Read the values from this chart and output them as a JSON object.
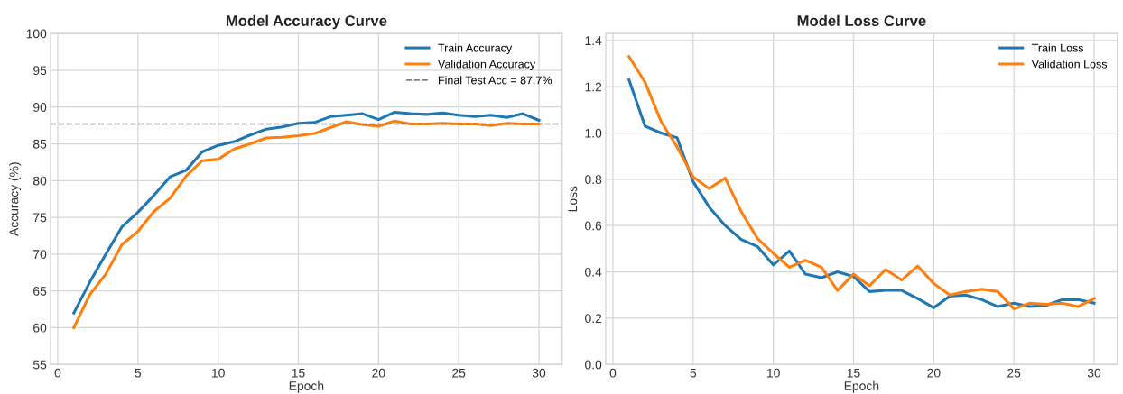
{
  "chart_data": [
    {
      "type": "line",
      "title": "Model Accuracy Curve",
      "xlabel": "Epoch",
      "ylabel": "Accuracy (%)",
      "x": [
        1,
        2,
        3,
        4,
        5,
        6,
        7,
        8,
        9,
        10,
        11,
        12,
        13,
        14,
        15,
        16,
        17,
        18,
        19,
        20,
        21,
        22,
        23,
        24,
        25,
        26,
        27,
        28,
        29,
        30
      ],
      "series": [
        {
          "name": "Train Accuracy",
          "color": "#1f77b4",
          "values": [
            62.0,
            66.2,
            70.0,
            73.7,
            75.7,
            78.0,
            80.5,
            81.4,
            83.9,
            84.8,
            85.3,
            86.2,
            87.0,
            87.3,
            87.8,
            87.9,
            88.7,
            88.9,
            89.1,
            88.3,
            89.3,
            89.1,
            89.0,
            89.2,
            88.9,
            88.7,
            88.9,
            88.6,
            89.1,
            88.2
          ]
        },
        {
          "name": "Validation Accuracy",
          "color": "#ff7f0e",
          "values": [
            60.0,
            64.5,
            67.3,
            71.3,
            73.1,
            75.8,
            77.6,
            80.6,
            82.7,
            82.9,
            84.3,
            85.0,
            85.8,
            85.9,
            86.1,
            86.4,
            87.2,
            88.0,
            87.6,
            87.4,
            88.1,
            87.7,
            87.7,
            87.8,
            87.7,
            87.7,
            87.5,
            87.8,
            87.7,
            87.7
          ]
        }
      ],
      "ref_lines": [
        {
          "axis": "y",
          "value": 87.7,
          "label": "Final Test Acc = 87.7%",
          "color": "#808080",
          "line_style": "dashed"
        }
      ],
      "xlim": [
        -0.45,
        31.45
      ],
      "xticks": [
        0,
        5,
        10,
        15,
        20,
        25,
        30
      ],
      "ylim": [
        55,
        100
      ],
      "yticks": [
        55,
        60,
        65,
        70,
        75,
        80,
        85,
        90,
        95,
        100
      ],
      "grid": true,
      "legend": "top right",
      "line_style": "solid",
      "marker": "none"
    },
    {
      "type": "line",
      "title": "Model Loss Curve",
      "xlabel": "Epoch",
      "ylabel": "Loss",
      "x": [
        1,
        2,
        3,
        4,
        5,
        6,
        7,
        8,
        9,
        10,
        11,
        12,
        13,
        14,
        15,
        16,
        17,
        18,
        19,
        20,
        21,
        22,
        23,
        24,
        25,
        26,
        27,
        28,
        29,
        30
      ],
      "series": [
        {
          "name": "Train Loss",
          "color": "#1f77b4",
          "values": [
            1.23,
            1.03,
            1.0,
            0.98,
            0.79,
            0.68,
            0.6,
            0.54,
            0.51,
            0.43,
            0.49,
            0.39,
            0.375,
            0.4,
            0.38,
            0.315,
            0.32,
            0.32,
            0.285,
            0.245,
            0.295,
            0.3,
            0.28,
            0.25,
            0.265,
            0.25,
            0.255,
            0.28,
            0.28,
            0.265
          ]
        },
        {
          "name": "Validation Loss",
          "color": "#ff7f0e",
          "values": [
            1.33,
            1.22,
            1.05,
            0.94,
            0.81,
            0.76,
            0.805,
            0.66,
            0.545,
            0.48,
            0.42,
            0.45,
            0.42,
            0.32,
            0.39,
            0.34,
            0.41,
            0.365,
            0.425,
            0.35,
            0.3,
            0.315,
            0.325,
            0.315,
            0.24,
            0.265,
            0.26,
            0.265,
            0.25,
            0.285
          ]
        }
      ],
      "xlim": [
        -0.45,
        31.45
      ],
      "xticks": [
        0,
        5,
        10,
        15,
        20,
        25,
        30
      ],
      "ylim": [
        0,
        1.43
      ],
      "yticks": [
        {
          "value": 0,
          "label": "0.0"
        },
        {
          "value": 0.2,
          "label": "0.2"
        },
        {
          "value": 0.4,
          "label": "0.4"
        },
        {
          "value": 0.6,
          "label": "0.6"
        },
        {
          "value": 0.8,
          "label": "0.8"
        },
        {
          "value": 1,
          "label": "1.0"
        },
        {
          "value": 1.2,
          "label": "1.2"
        },
        {
          "value": 1.4,
          "label": "1.4"
        }
      ],
      "grid": true,
      "legend": "top right",
      "line_style": "solid",
      "marker": "none"
    }
  ]
}
